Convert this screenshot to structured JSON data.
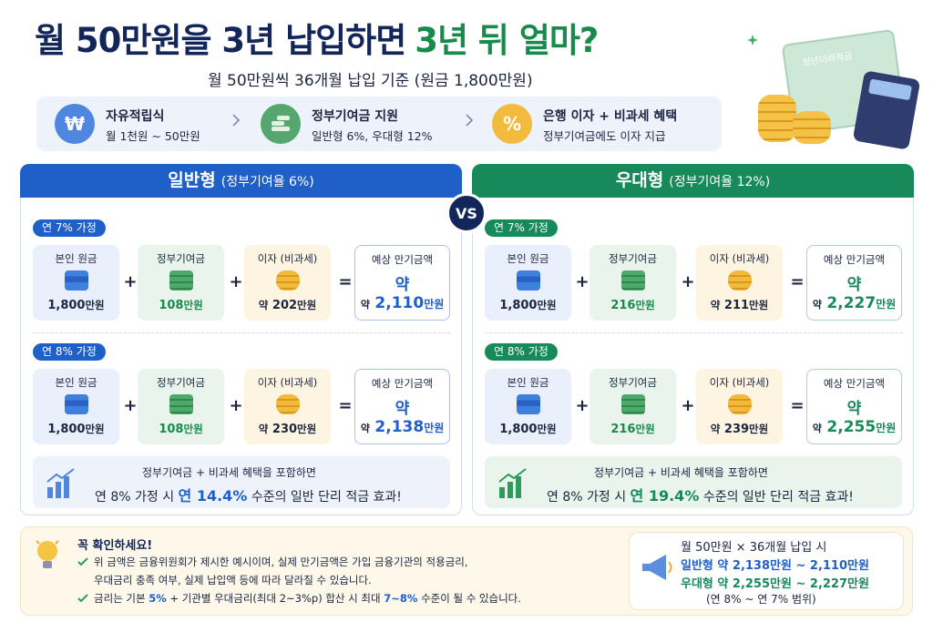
{
  "header": {
    "title_main": "월 50만원을 3년 납입하면",
    "title_accent": "3년 뒤 얼마?",
    "subtitle": "월 50만원씩 36개월 납입 기준 (원금 1,800만원)"
  },
  "features": [
    {
      "icon": "₩",
      "title": "자유적립식",
      "desc": "월 1천원 ~ 50만원"
    },
    {
      "title": "정부기여금 지원",
      "desc": "일반형 6%, 우대형 12%"
    },
    {
      "icon": "%",
      "title": "은행 이자 + 비과세 혜택",
      "desc": "정부기여금에도 이자 지급"
    }
  ],
  "illustration": {
    "card_label": "청년미래적금"
  },
  "vs": "VS",
  "operators": [
    "+",
    "+",
    "="
  ],
  "panels": [
    {
      "name": "일반형",
      "sub": "(정부기여율 6%)",
      "scenarios": [
        {
          "label": "연 7% 가정",
          "items": [
            {
              "label": "본인 원금",
              "value": "1,800",
              "unit": "만원"
            },
            {
              "label": "정부기여금",
              "value": "108",
              "unit": "만원"
            },
            {
              "label": "이자 (비과세)",
              "prefix": "약",
              "value": "202",
              "unit": "만원"
            }
          ],
          "result": {
            "label": "예상 만기금액",
            "approx": "약",
            "prefix": "약",
            "value": "2,110",
            "unit": "만원"
          }
        },
        {
          "label": "연 8% 가정",
          "items": [
            {
              "label": "본인 원금",
              "value": "1,800",
              "unit": "만원"
            },
            {
              "label": "정부기여금",
              "value": "108",
              "unit": "만원"
            },
            {
              "label": "이자 (비과세)",
              "prefix": "약",
              "value": "230",
              "unit": "만원"
            }
          ],
          "result": {
            "label": "예상 만기금액",
            "approx": "약",
            "prefix": "약",
            "value": "2,138",
            "unit": "만원"
          }
        }
      ],
      "summary": {
        "line1": "정부기여금 + 비과세 혜택을 포함하면",
        "lead": "연 8% 가정 시",
        "highlight": "연 14.4%",
        "tail": "수준의 일반 단리 적금 효과!"
      }
    },
    {
      "name": "우대형",
      "sub": "(정부기여율 12%)",
      "scenarios": [
        {
          "label": "연 7% 가정",
          "items": [
            {
              "label": "본인 원금",
              "value": "1,800",
              "unit": "만원"
            },
            {
              "label": "정부기여금",
              "value": "216",
              "unit": "만원"
            },
            {
              "label": "이자 (비과세)",
              "prefix": "약",
              "value": "211",
              "unit": "만원"
            }
          ],
          "result": {
            "label": "예상 만기금액",
            "approx": "약",
            "prefix": "약",
            "value": "2,227",
            "unit": "만원"
          }
        },
        {
          "label": "연 8% 가정",
          "items": [
            {
              "label": "본인 원금",
              "value": "1,800",
              "unit": "만원"
            },
            {
              "label": "정부기여금",
              "value": "216",
              "unit": "만원"
            },
            {
              "label": "이자 (비과세)",
              "prefix": "약",
              "value": "239",
              "unit": "만원"
            }
          ],
          "result": {
            "label": "예상 만기금액",
            "approx": "약",
            "prefix": "약",
            "value": "2,255",
            "unit": "만원"
          }
        }
      ],
      "summary": {
        "line1": "정부기여금 + 비과세 혜택을 포함하면",
        "lead": "연 8% 가정 시",
        "highlight": "연 19.4%",
        "tail": "수준의 일반 단리 적금 효과!"
      }
    }
  ],
  "notice": {
    "title": "꼭 확인하세요!",
    "item1": [
      "위 금액은 금융위원회가 제시한 예시이며, 실제 만기금액은 가입 금융기관의 적용금리,",
      "우대금리 충족 여부, 실제 납입액 등에 따라 달라질 수 있습니다."
    ],
    "item2": [
      "금리는 기본",
      "5%",
      "+ 기관별 우대금리(최대 2~3%p) 합산 시 최대",
      "7~8%",
      "수준이 될 수 있습니다."
    ]
  },
  "recap": {
    "title": "월 50만원 × 36개월 납입 시",
    "rows": [
      {
        "name": "일반형",
        "text": "약 2,138만원 ~ 2,110만원"
      },
      {
        "name": "우대형",
        "text": "약 2,255만원 ~ 2,227만원"
      }
    ],
    "note": "(연 8% ~ 연 7% 범위)"
  }
}
